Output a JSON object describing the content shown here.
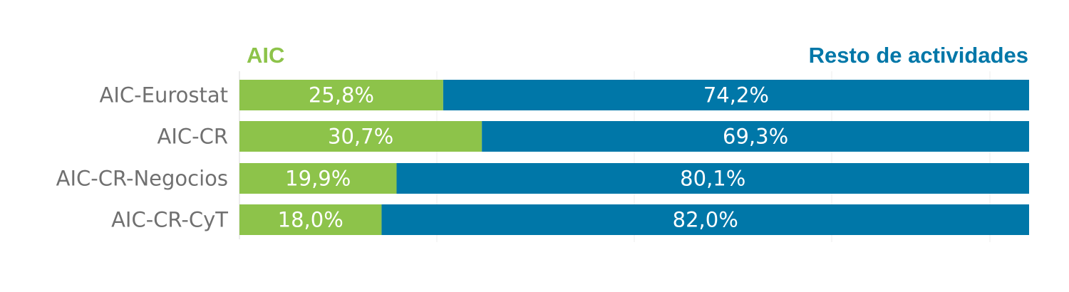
{
  "chart_data": {
    "type": "bar",
    "orientation": "horizontal",
    "stacked": true,
    "categories": [
      "AIC-Eurostat",
      "AIC-CR",
      "AIC-CR-Negocios",
      "AIC-CR-CyT"
    ],
    "series": [
      {
        "name": "AIC",
        "values": [
          25.8,
          30.7,
          19.9,
          18.0
        ],
        "labels": [
          "25,8%",
          "30,7%",
          "19,9%",
          "18,0%"
        ],
        "color": "#8dc34a"
      },
      {
        "name": "Resto de actividades",
        "values": [
          74.2,
          69.3,
          80.1,
          82.0
        ],
        "labels": [
          "74,2%",
          "69,3%",
          "80,1%",
          "82,0%"
        ],
        "color": "#0077a8"
      }
    ],
    "xlim": [
      0,
      100
    ],
    "grid": true,
    "legend_position": "top"
  }
}
